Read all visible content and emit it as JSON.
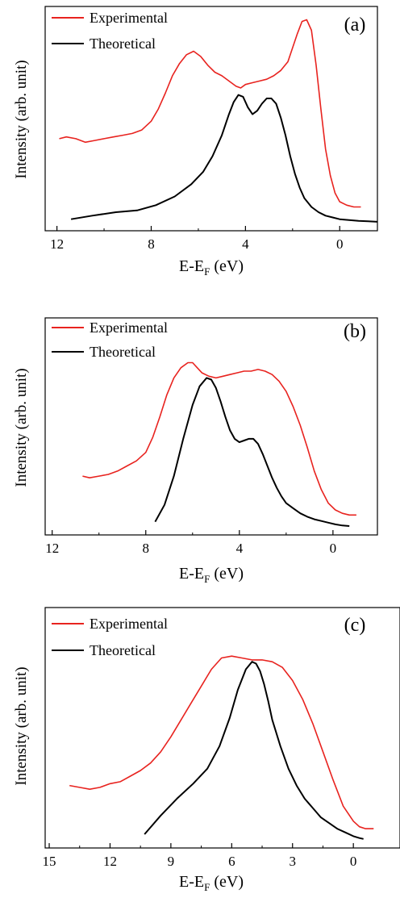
{
  "chart_data": [
    {
      "type": "line",
      "panel_label": "(a)",
      "xlabel_main": "E-E",
      "xlabel_sub": "F",
      "xlabel_unit": " (eV)",
      "ylabel": "Intensity (arb. unit)",
      "xlim": [
        12.5,
        -1.6
      ],
      "x_ticks": [
        12,
        8,
        4,
        0
      ],
      "y_ticks_shown": false,
      "legend": "top-left",
      "grid": false,
      "series": [
        {
          "name": "Experimental",
          "color": "#e8231f",
          "x": [
            11.9,
            11.6,
            11.2,
            10.8,
            10.4,
            10.0,
            9.6,
            9.2,
            8.8,
            8.4,
            8.0,
            7.7,
            7.4,
            7.1,
            6.8,
            6.5,
            6.2,
            5.9,
            5.6,
            5.3,
            5.0,
            4.7,
            4.4,
            4.2,
            4.0,
            3.7,
            3.4,
            3.1,
            2.8,
            2.5,
            2.2,
            2.0,
            1.8,
            1.6,
            1.4,
            1.2,
            1.0,
            0.8,
            0.6,
            0.4,
            0.2,
            0.0,
            -0.3,
            -0.6,
            -0.9
          ],
          "y": [
            0.48,
            0.49,
            0.48,
            0.46,
            0.47,
            0.48,
            0.49,
            0.5,
            0.51,
            0.53,
            0.58,
            0.65,
            0.74,
            0.84,
            0.91,
            0.96,
            0.98,
            0.95,
            0.9,
            0.86,
            0.84,
            0.81,
            0.78,
            0.77,
            0.79,
            0.8,
            0.81,
            0.82,
            0.84,
            0.87,
            0.92,
            1.0,
            1.08,
            1.15,
            1.16,
            1.1,
            0.9,
            0.65,
            0.42,
            0.27,
            0.17,
            0.12,
            0.1,
            0.09,
            0.09
          ]
        },
        {
          "name": "Theoretical",
          "color": "#000000",
          "x": [
            11.4,
            10.5,
            9.5,
            8.6,
            7.8,
            7.0,
            6.3,
            5.8,
            5.4,
            5.0,
            4.7,
            4.5,
            4.3,
            4.1,
            3.9,
            3.7,
            3.5,
            3.3,
            3.1,
            2.9,
            2.7,
            2.5,
            2.3,
            2.1,
            1.9,
            1.7,
            1.5,
            1.2,
            0.9,
            0.6,
            0.3,
            0.0,
            -0.4,
            -0.8,
            -1.2,
            -1.6
          ],
          "y": [
            0.02,
            0.04,
            0.06,
            0.07,
            0.1,
            0.15,
            0.22,
            0.29,
            0.38,
            0.5,
            0.62,
            0.69,
            0.73,
            0.72,
            0.66,
            0.62,
            0.64,
            0.68,
            0.71,
            0.71,
            0.68,
            0.6,
            0.5,
            0.38,
            0.28,
            0.2,
            0.14,
            0.09,
            0.06,
            0.04,
            0.03,
            0.02,
            0.015,
            0.01,
            0.008,
            0.005
          ]
        }
      ]
    },
    {
      "type": "line",
      "panel_label": "(b)",
      "xlabel_main": "E-E",
      "xlabel_sub": "F",
      "xlabel_unit": " (eV)",
      "ylabel": "Intensity (arb. unit)",
      "xlim": [
        12.3,
        -1.9
      ],
      "x_ticks": [
        12,
        8,
        4,
        0
      ],
      "y_ticks_shown": false,
      "legend": "top-left",
      "grid": false,
      "series": [
        {
          "name": "Experimental",
          "color": "#e8231f",
          "x": [
            10.7,
            10.4,
            10.0,
            9.6,
            9.2,
            8.8,
            8.4,
            8.0,
            7.7,
            7.4,
            7.1,
            6.8,
            6.5,
            6.2,
            6.0,
            5.8,
            5.6,
            5.3,
            5.0,
            4.7,
            4.4,
            4.1,
            3.8,
            3.5,
            3.2,
            2.9,
            2.6,
            2.3,
            2.0,
            1.7,
            1.4,
            1.1,
            0.8,
            0.5,
            0.2,
            -0.1,
            -0.4,
            -0.7,
            -1.0
          ],
          "y": [
            0.3,
            0.29,
            0.3,
            0.31,
            0.33,
            0.36,
            0.39,
            0.44,
            0.53,
            0.65,
            0.78,
            0.88,
            0.94,
            0.97,
            0.97,
            0.94,
            0.91,
            0.89,
            0.88,
            0.89,
            0.9,
            0.91,
            0.92,
            0.92,
            0.93,
            0.92,
            0.9,
            0.86,
            0.8,
            0.71,
            0.6,
            0.47,
            0.33,
            0.22,
            0.14,
            0.1,
            0.08,
            0.07,
            0.07
          ]
        },
        {
          "name": "Theoretical",
          "color": "#000000",
          "x": [
            7.6,
            7.2,
            6.8,
            6.4,
            6.0,
            5.7,
            5.4,
            5.2,
            5.0,
            4.8,
            4.6,
            4.4,
            4.2,
            4.0,
            3.8,
            3.6,
            3.4,
            3.2,
            3.0,
            2.8,
            2.6,
            2.4,
            2.2,
            2.0,
            1.7,
            1.4,
            1.1,
            0.8,
            0.5,
            0.2,
            -0.1,
            -0.4,
            -0.7
          ],
          "y": [
            0.03,
            0.13,
            0.3,
            0.52,
            0.72,
            0.83,
            0.88,
            0.87,
            0.82,
            0.74,
            0.65,
            0.57,
            0.52,
            0.5,
            0.51,
            0.52,
            0.52,
            0.49,
            0.43,
            0.36,
            0.29,
            0.23,
            0.18,
            0.14,
            0.11,
            0.08,
            0.06,
            0.045,
            0.035,
            0.025,
            0.015,
            0.008,
            0.005
          ]
        }
      ]
    },
    {
      "type": "line",
      "panel_label": "(c)",
      "xlabel_main": "E-E",
      "xlabel_sub": "F",
      "xlabel_unit": " (eV)",
      "ylabel": "Intensity (arb. unit)",
      "xlim": [
        15.2,
        -2.3
      ],
      "x_ticks": [
        15,
        12,
        9,
        6,
        3,
        0
      ],
      "y_ticks_shown": false,
      "legend": "top-left",
      "grid": false,
      "series": [
        {
          "name": "Experimental",
          "color": "#e8231f",
          "x": [
            14.0,
            13.5,
            13.0,
            12.5,
            12.0,
            11.5,
            11.0,
            10.5,
            10.0,
            9.5,
            9.0,
            8.5,
            8.0,
            7.5,
            7.0,
            6.5,
            6.0,
            5.5,
            5.0,
            4.5,
            4.0,
            3.5,
            3.0,
            2.5,
            2.0,
            1.5,
            1.0,
            0.5,
            0.0,
            -0.3,
            -0.6,
            -1.0
          ],
          "y": [
            0.29,
            0.28,
            0.27,
            0.28,
            0.3,
            0.31,
            0.34,
            0.37,
            0.41,
            0.47,
            0.55,
            0.64,
            0.73,
            0.82,
            0.91,
            0.97,
            0.98,
            0.97,
            0.96,
            0.96,
            0.95,
            0.92,
            0.85,
            0.75,
            0.62,
            0.47,
            0.32,
            0.18,
            0.1,
            0.07,
            0.06,
            0.06
          ]
        },
        {
          "name": "Theoretical",
          "color": "#000000",
          "x": [
            10.3,
            9.5,
            8.7,
            7.9,
            7.2,
            6.6,
            6.1,
            5.7,
            5.3,
            5.0,
            4.8,
            4.6,
            4.4,
            4.2,
            4.0,
            3.6,
            3.2,
            2.8,
            2.4,
            2.0,
            1.6,
            1.2,
            0.8,
            0.4,
            0.0,
            -0.3,
            -0.5
          ],
          "y": [
            0.03,
            0.13,
            0.22,
            0.3,
            0.38,
            0.5,
            0.65,
            0.8,
            0.91,
            0.95,
            0.94,
            0.9,
            0.83,
            0.74,
            0.64,
            0.5,
            0.38,
            0.29,
            0.22,
            0.17,
            0.12,
            0.09,
            0.06,
            0.04,
            0.02,
            0.01,
            0.005
          ]
        }
      ]
    }
  ]
}
